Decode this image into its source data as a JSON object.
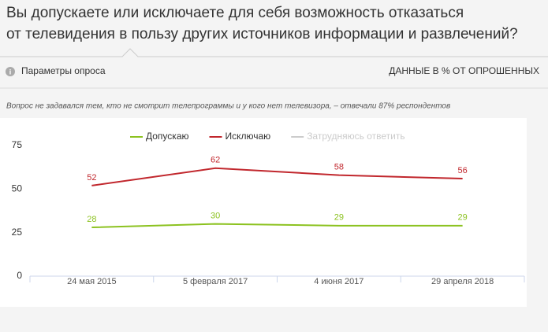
{
  "chart_data": {
    "type": "line",
    "title": [
      "Вы допускаете или исключаете для себя возможность отказаться",
      "от телевидения в пользу других источников информации и развлечений?"
    ],
    "survey_params": "Параметры опроса",
    "units": "ДАННЫЕ В % ОТ ОПРОШЕННЫХ",
    "note": "Вопрос не задавался тем, кто не смотрит телепрограммы и у кого нет телевизора, – отвечали 87% респондентов",
    "categories": [
      "24 мая 2015",
      "5 февраля 2017",
      "4 июня 2017",
      "29 апреля 2018"
    ],
    "series": [
      {
        "name": "Допускаю",
        "color": "#8cc220",
        "values": [
          28,
          30,
          29,
          29
        ]
      },
      {
        "name": "Исключаю",
        "color": "#c1272d",
        "values": [
          52,
          62,
          58,
          56
        ]
      },
      {
        "name": "Затрудняюсь ответить",
        "color": "#cccccc",
        "values": [
          null,
          null,
          null,
          null
        ]
      }
    ],
    "ylim": [
      0,
      75
    ],
    "yticks": [
      0,
      25,
      50,
      75
    ],
    "grid": false
  }
}
